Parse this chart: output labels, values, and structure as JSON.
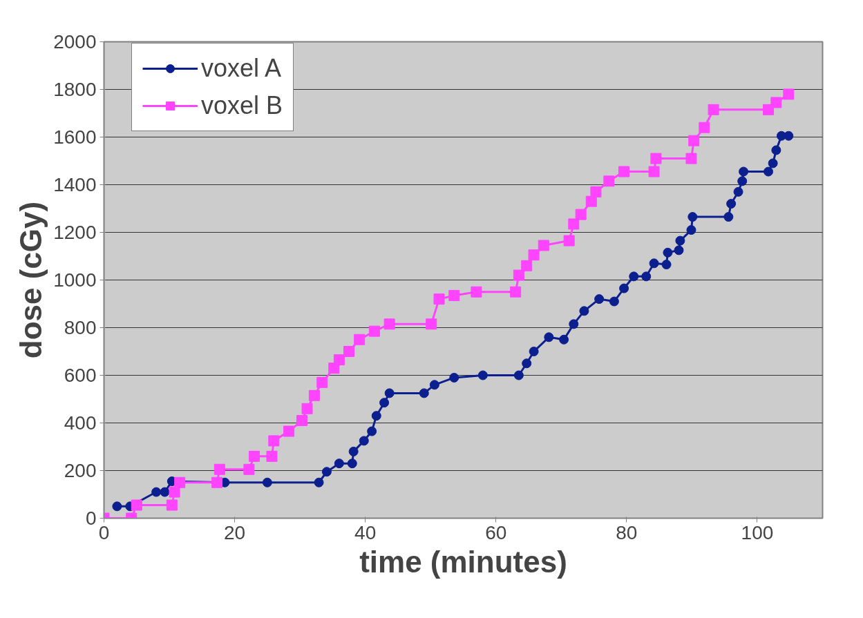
{
  "chart_data": {
    "type": "line",
    "xlabel": "time (minutes)",
    "ylabel": "dose (cGy)",
    "xlim": [
      0,
      110
    ],
    "xticks": [
      0,
      20,
      40,
      60,
      80,
      100
    ],
    "ylim": [
      0,
      2000
    ],
    "yticks": [
      0,
      200,
      400,
      600,
      800,
      1000,
      1200,
      1400,
      1600,
      1800,
      2000
    ],
    "grid": "y",
    "legend": "top left",
    "line_style": "solid",
    "series": [
      {
        "name": "voxel A",
        "color": "#0b1f8f",
        "marker": "circle",
        "x": [
          2,
          4,
          8,
          9.3,
          10.4,
          18.5,
          25,
          32.9,
          34.1,
          36,
          38,
          38.2,
          39.8,
          41,
          41.7,
          42.9,
          43.7,
          49,
          50.6,
          53.6,
          58,
          63.5,
          64.7,
          65.8,
          68.1,
          70.4,
          71.9,
          73.5,
          75.8,
          78.1,
          79.6,
          81.1,
          83,
          84.2,
          86.1,
          86.3,
          88,
          88.2,
          89.9,
          90.1,
          95.6,
          96,
          97.1,
          97.7,
          97.9,
          101.7,
          102.4,
          102.9,
          103.7,
          104.8
        ],
        "values": [
          50,
          50,
          110,
          110,
          155,
          150,
          150,
          150,
          195,
          230,
          230,
          280,
          325,
          365,
          430,
          485,
          525,
          525,
          560,
          590,
          600,
          600,
          650,
          700,
          760,
          750,
          815,
          870,
          920,
          910,
          965,
          1015,
          1015,
          1070,
          1065,
          1115,
          1125,
          1165,
          1210,
          1265,
          1265,
          1320,
          1370,
          1415,
          1455,
          1455,
          1490,
          1545,
          1605,
          1605
        ]
      },
      {
        "name": "voxel B",
        "color": "#ff44ff",
        "marker": "square",
        "x": [
          0,
          4.2,
          5,
          10.4,
          10.8,
          11.6,
          17.3,
          17.7,
          22.2,
          23,
          25.7,
          26,
          28.3,
          30.3,
          31.1,
          32.2,
          33.4,
          35.2,
          36,
          37.5,
          39.1,
          41.4,
          43.7,
          50.1,
          51.3,
          53.6,
          57,
          63,
          63.5,
          64.7,
          65.8,
          67.3,
          71.2,
          71.9,
          73,
          74.6,
          75.3,
          77.3,
          79.6,
          84.2,
          84.5,
          89.9,
          90.3,
          91.9,
          93.3,
          101.7,
          102.9,
          104.8
        ],
        "values": [
          0,
          0,
          55,
          55,
          110,
          150,
          150,
          205,
          205,
          260,
          260,
          325,
          365,
          410,
          460,
          515,
          570,
          630,
          665,
          700,
          750,
          785,
          815,
          815,
          920,
          935,
          950,
          950,
          1020,
          1060,
          1105,
          1145,
          1165,
          1235,
          1275,
          1330,
          1370,
          1415,
          1455,
          1455,
          1510,
          1510,
          1585,
          1640,
          1715,
          1715,
          1745,
          1780
        ]
      }
    ]
  }
}
